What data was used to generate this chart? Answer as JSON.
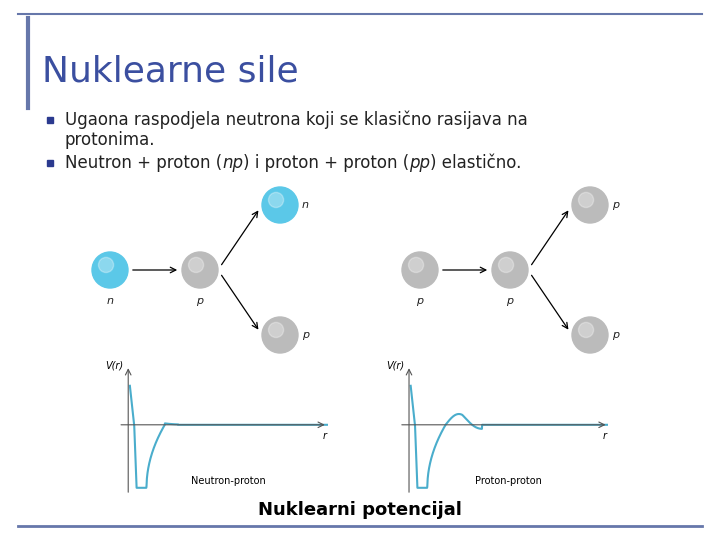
{
  "title": "Nuklearne sile",
  "title_color": "#3B4FA0",
  "title_fontsize": 26,
  "bullet1_line1": "Ugaona raspodjela neutrona koji se klasično rasijava na",
  "bullet1_line2": "protonima.",
  "bullet2_pre": "Neutron + proton (",
  "bullet2_italic1": "np",
  "bullet2_mid": ") i proton + proton (",
  "bullet2_italic2": "pp",
  "bullet2_end": ") elastično.",
  "caption": "Nuklearni potencijal",
  "caption_fontsize": 13,
  "bullet_fontsize": 12,
  "bg_color": "#FFFFFF",
  "bullet_marker_color": "#2B3A8F",
  "neutron_color": "#5BC8E8",
  "proton_color": "#BBBBBB",
  "curve_color": "#4AADCC",
  "border_top_color": "#6677AA",
  "border_bottom_color": "#6677AA",
  "title_bar_color": "#6677AA",
  "label_n": "n",
  "label_p": "p",
  "label_Vr": "V(r)",
  "label_r": "r",
  "label_np": "Neutron-proton",
  "label_pp": "Proton-proton"
}
